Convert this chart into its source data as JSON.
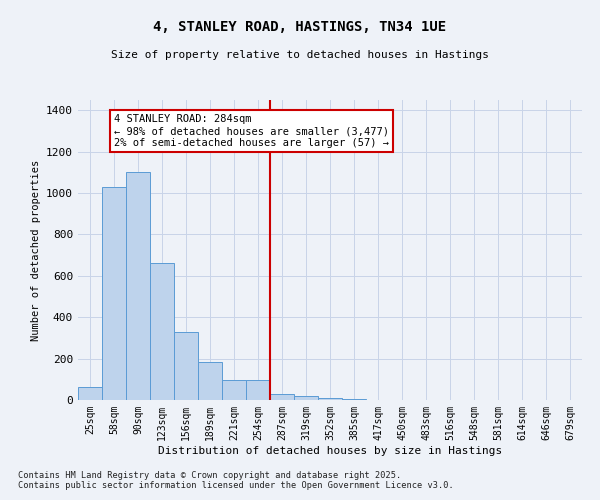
{
  "title": "4, STANLEY ROAD, HASTINGS, TN34 1UE",
  "subtitle": "Size of property relative to detached houses in Hastings",
  "xlabel": "Distribution of detached houses by size in Hastings",
  "ylabel": "Number of detached properties",
  "bar_labels": [
    "25sqm",
    "58sqm",
    "90sqm",
    "123sqm",
    "156sqm",
    "189sqm",
    "221sqm",
    "254sqm",
    "287sqm",
    "319sqm",
    "352sqm",
    "385sqm",
    "417sqm",
    "450sqm",
    "483sqm",
    "516sqm",
    "548sqm",
    "581sqm",
    "614sqm",
    "646sqm",
    "679sqm"
  ],
  "bar_values": [
    65,
    1030,
    1100,
    660,
    330,
    185,
    95,
    95,
    30,
    20,
    10,
    5,
    2,
    2,
    1,
    1,
    0,
    0,
    0,
    0,
    0
  ],
  "bar_color": "#bed3ec",
  "bar_edge_color": "#5b9bd5",
  "grid_color": "#c8d4e8",
  "background_color": "#eef2f8",
  "vline_x_index": 8,
  "vline_color": "#cc0000",
  "annotation_text": "4 STANLEY ROAD: 284sqm\n← 98% of detached houses are smaller (3,477)\n2% of semi-detached houses are larger (57) →",
  "annotation_box_color": "#ffffff",
  "annotation_box_edge": "#cc0000",
  "ylim": [
    0,
    1450
  ],
  "yticks": [
    0,
    200,
    400,
    600,
    800,
    1000,
    1200,
    1400
  ],
  "footnote": "Contains HM Land Registry data © Crown copyright and database right 2025.\nContains public sector information licensed under the Open Government Licence v3.0."
}
